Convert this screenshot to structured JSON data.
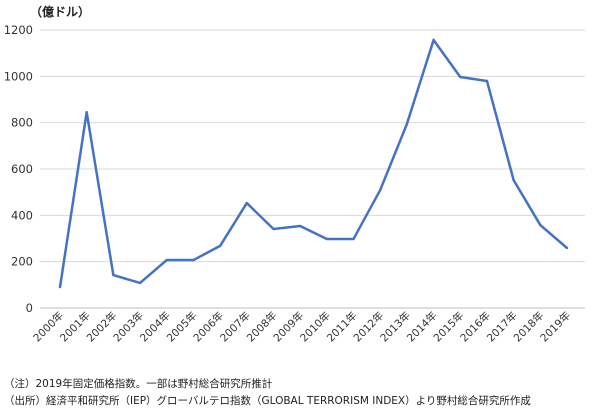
{
  "chart_data": {
    "type": "line",
    "title": "",
    "ylabel": "（億ドル）",
    "xlabel": "",
    "categories": [
      "2000年",
      "2001年",
      "2002年",
      "2003年",
      "2004年",
      "2005年",
      "2006年",
      "2007年",
      "2008年",
      "2009年",
      "2010年",
      "2011年",
      "2012年",
      "2013年",
      "2014年",
      "2015年",
      "2016年",
      "2017年",
      "2018年",
      "2019年"
    ],
    "series": [
      {
        "name": "",
        "color": "#4472C4",
        "values": [
          90,
          845,
          142,
          108,
          207,
          207,
          268,
          453,
          341,
          354,
          298,
          298,
          509,
          794,
          1157,
          997,
          980,
          552,
          358,
          259
        ]
      }
    ],
    "ylim": [
      0,
      1200
    ],
    "yticks": [
      0,
      200,
      400,
      600,
      800,
      1000,
      1200
    ],
    "grid": true,
    "legend": "none"
  },
  "notes": {
    "note": "（注）2019年固定価格指数。一部は野村総合研究所推計",
    "source": "（出所）経済平和研究所（IEP）グローバルテロ指数（GLOBAL TERRORISM INDEX）より野村総合研究所作成"
  }
}
